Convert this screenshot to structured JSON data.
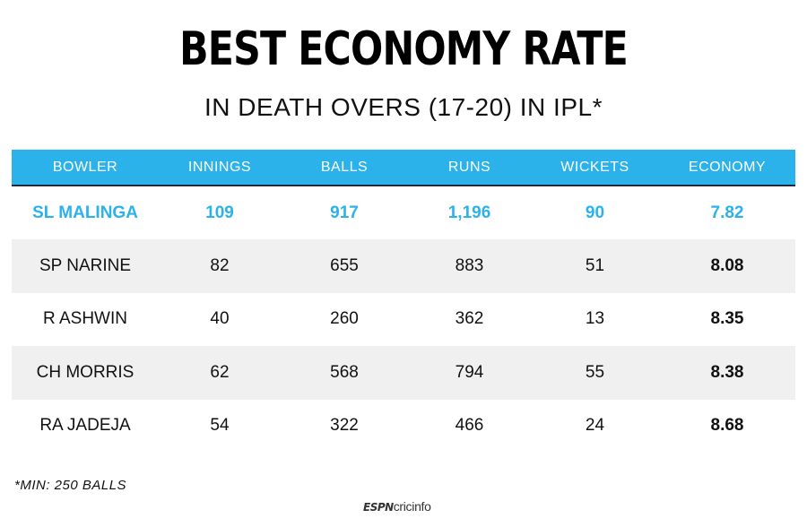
{
  "title": "BEST ECONOMY RATE",
  "subtitle": "IN DEATH OVERS (17-20) IN IPL*",
  "footnote": "*MIN: 250 BALLS",
  "logo": {
    "espn": "ESPN",
    "cricinfo": "cricinfo"
  },
  "colors": {
    "header_bg": "#2bb2ea",
    "highlight_text": "#2bb2ea",
    "stripe_bg": "#f0f0f0",
    "header_rule": "#1e2a3a"
  },
  "chart_data": {
    "type": "table",
    "columns": [
      "BOWLER",
      "INNINGS",
      "BALLS",
      "RUNS",
      "WICKETS",
      "ECONOMY"
    ],
    "rows": [
      [
        "SL MALINGA",
        "109",
        "917",
        "1,196",
        "90",
        "7.82"
      ],
      [
        "SP NARINE",
        "82",
        "655",
        "883",
        "51",
        "8.08"
      ],
      [
        "R ASHWIN",
        "40",
        "260",
        "362",
        "13",
        "8.35"
      ],
      [
        "CH MORRIS",
        "62",
        "568",
        "794",
        "55",
        "8.38"
      ],
      [
        "RA JADEJA",
        "54",
        "322",
        "466",
        "24",
        "8.68"
      ]
    ],
    "highlighted_row": 0
  }
}
